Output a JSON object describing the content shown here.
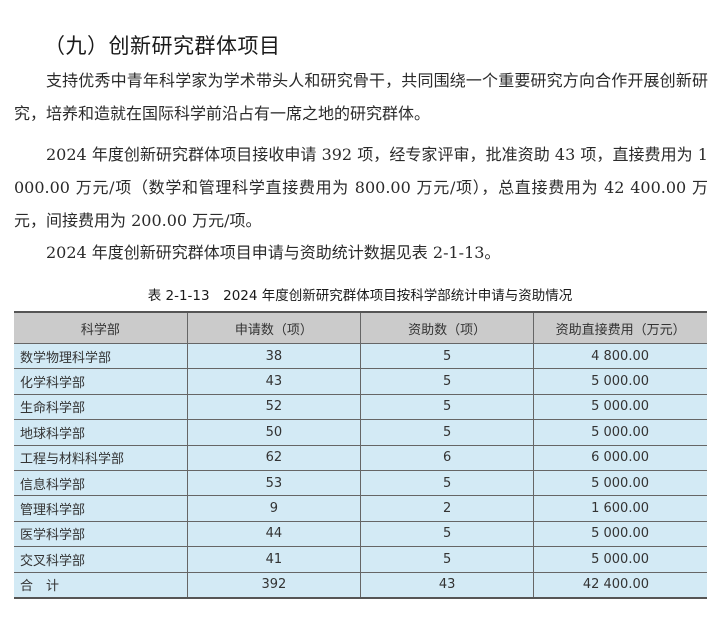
{
  "heading": "（九）创新研究群体项目",
  "paragraphs": [
    "支持优秀中青年科学家为学术带头人和研究骨干，共同围绕一个重要研究方向合作开展创新研究，培养和造就在国际科学前沿占有一席之地的研究群体。",
    "2024 年度创新研究群体项目接收申请 392 项，经专家评审，批准资助 43 项，直接费用为 1 000.00 万元/项（数学和管理科学直接费用为 800.00 万元/项），总直接费用为 42 400.00 万元，间接费用为 200.00 万元/项。",
    "2024 年度创新研究群体项目申请与资助统计数据见表 2-1-13。"
  ],
  "table": {
    "caption": "表 2-1-13　2024 年度创新研究群体项目按科学部统计申请与资助情况",
    "headers": [
      "科学部",
      "申请数（项）",
      "资助数（项）",
      "资助直接费用（万元）"
    ],
    "rows": [
      [
        "数学物理科学部",
        "38",
        "5",
        "4 800.00"
      ],
      [
        "化学科学部",
        "43",
        "5",
        "5 000.00"
      ],
      [
        "生命科学部",
        "52",
        "5",
        "5 000.00"
      ],
      [
        "地球科学部",
        "50",
        "5",
        "5 000.00"
      ],
      [
        "工程与材料科学部",
        "62",
        "6",
        "6 000.00"
      ],
      [
        "信息科学部",
        "53",
        "5",
        "5 000.00"
      ],
      [
        "管理科学部",
        "9",
        "2",
        "1 600.00"
      ],
      [
        "医学科学部",
        "44",
        "5",
        "5 000.00"
      ],
      [
        "交叉科学部",
        "41",
        "5",
        "5 000.00"
      ],
      [
        "合　计",
        "392",
        "43",
        "42 400.00"
      ]
    ],
    "colors": {
      "header_bg": "#cbcbcb",
      "row_bg": "#d3eaf5"
    }
  }
}
